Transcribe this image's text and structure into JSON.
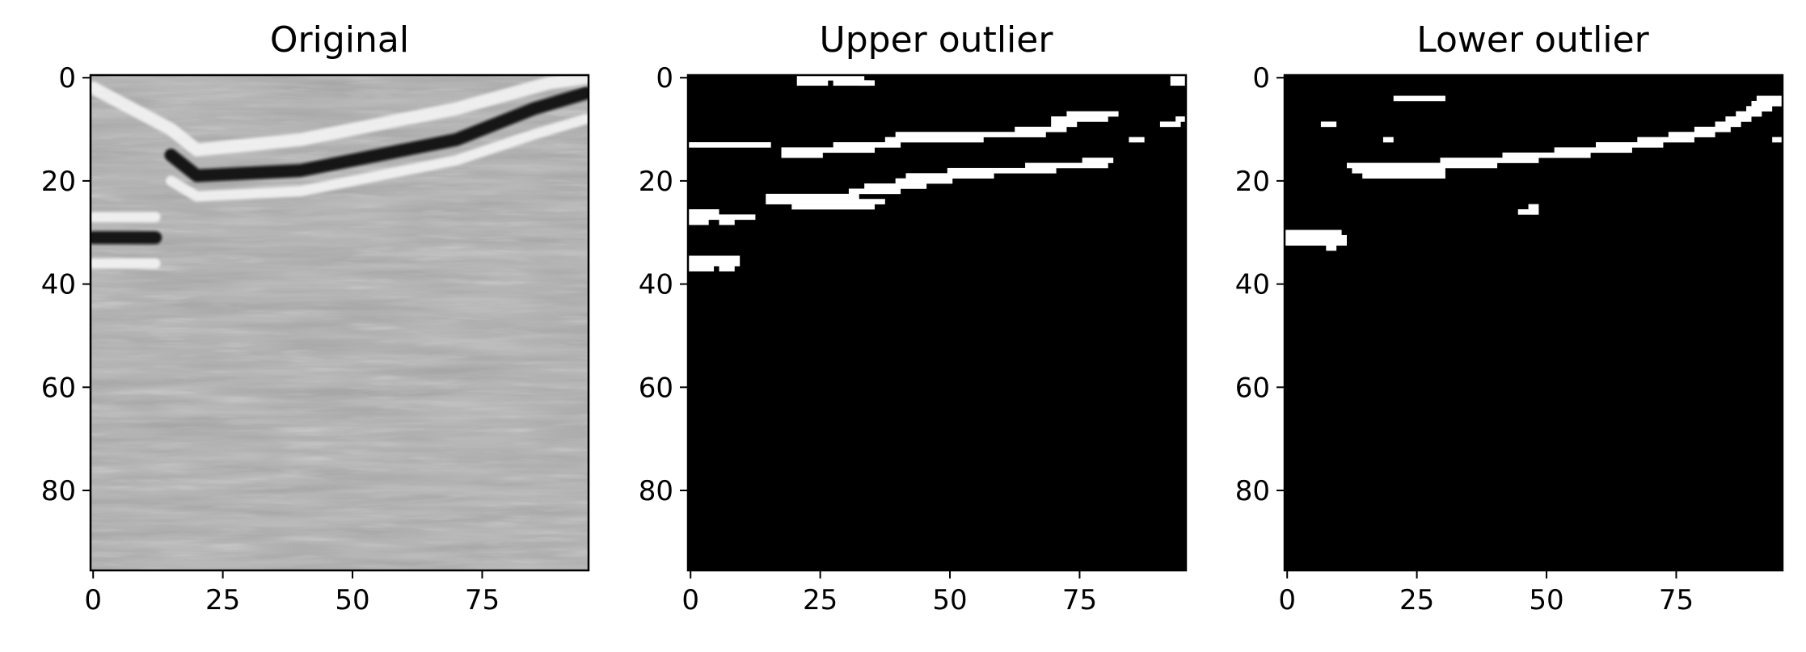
{
  "chart_data": [
    {
      "type": "heatmap",
      "title": "Original",
      "colormap": "grayscale seismic amplitude",
      "xlim": [
        0,
        95
      ],
      "ylim": [
        95,
        0
      ],
      "xticks": [
        0,
        25,
        50,
        75
      ],
      "yticks": [
        0,
        20,
        40,
        60,
        80
      ],
      "features": [
        {
          "kind": "bright reflector",
          "points": [
            [
              0,
              2
            ],
            [
              15,
              10
            ],
            [
              20,
              14
            ],
            [
              40,
              12
            ],
            [
              55,
              9
            ],
            [
              70,
              6
            ],
            [
              88,
              1
            ],
            [
              95,
              0
            ]
          ],
          "thickness": 2.5
        },
        {
          "kind": "dark reflector",
          "points": [
            [
              15,
              15
            ],
            [
              20,
              19
            ],
            [
              40,
              18
            ],
            [
              55,
              15
            ],
            [
              70,
              12
            ],
            [
              85,
              6
            ],
            [
              95,
              3
            ]
          ],
          "thickness": 2.5
        },
        {
          "kind": "bright reflector",
          "points": [
            [
              15,
              20
            ],
            [
              20,
              23
            ],
            [
              40,
              22
            ],
            [
              55,
              19
            ],
            [
              70,
              16
            ],
            [
              85,
              11
            ],
            [
              95,
              8
            ]
          ],
          "thickness": 2
        },
        {
          "kind": "bright reflector",
          "points": [
            [
              0,
              27
            ],
            [
              12,
              27
            ]
          ],
          "thickness": 2
        },
        {
          "kind": "dark reflector",
          "points": [
            [
              0,
              31
            ],
            [
              12,
              31
            ]
          ],
          "thickness": 2.5
        },
        {
          "kind": "bright reflector",
          "points": [
            [
              0,
              36
            ],
            [
              12,
              36
            ]
          ],
          "thickness": 2
        }
      ]
    },
    {
      "type": "heatmap",
      "title": "Upper outlier",
      "colormap": "binary (black = 0, white = 1)",
      "xlim": [
        0,
        95
      ],
      "ylim": [
        95,
        0
      ],
      "xticks": [
        0,
        25,
        50,
        75
      ],
      "yticks": [
        0,
        20,
        40,
        60,
        80
      ],
      "white_runs": [
        [
          0,
          21,
          33
        ],
        [
          0,
          93,
          95
        ],
        [
          1,
          21,
          26
        ],
        [
          1,
          28,
          35
        ],
        [
          1,
          33,
          34
        ],
        [
          1,
          93,
          95
        ],
        [
          7,
          73,
          82
        ],
        [
          8,
          70,
          80
        ],
        [
          8,
          94,
          95
        ],
        [
          9,
          70,
          74
        ],
        [
          9,
          91,
          94
        ],
        [
          10,
          63,
          72
        ],
        [
          11,
          40,
          68
        ],
        [
          12,
          38,
          56
        ],
        [
          12,
          85,
          87
        ],
        [
          13,
          0,
          15
        ],
        [
          13,
          28,
          40
        ],
        [
          14,
          18,
          35
        ],
        [
          15,
          18,
          25
        ],
        [
          16,
          76,
          81
        ],
        [
          17,
          65,
          80
        ],
        [
          18,
          50,
          70
        ],
        [
          19,
          42,
          58
        ],
        [
          20,
          40,
          50
        ],
        [
          21,
          34,
          45
        ],
        [
          22,
          31,
          40
        ],
        [
          23,
          15,
          32
        ],
        [
          24,
          15,
          37
        ],
        [
          25,
          20,
          35
        ],
        [
          26,
          0,
          5
        ],
        [
          27,
          0,
          12
        ],
        [
          28,
          0,
          3
        ],
        [
          28,
          6,
          8
        ],
        [
          35,
          0,
          9
        ],
        [
          36,
          0,
          9
        ],
        [
          37,
          0,
          4
        ],
        [
          37,
          6,
          8
        ]
      ]
    },
    {
      "type": "heatmap",
      "title": "Lower outlier",
      "colormap": "binary (black = 0, white = 1)",
      "xlim": [
        0,
        95
      ],
      "ylim": [
        95,
        0
      ],
      "xticks": [
        0,
        25,
        50,
        75
      ],
      "yticks": [
        0,
        20,
        40,
        60,
        80
      ],
      "white_runs": [
        [
          4,
          21,
          30
        ],
        [
          4,
          91,
          95
        ],
        [
          5,
          90,
          95
        ],
        [
          6,
          89,
          93
        ],
        [
          7,
          87,
          91
        ],
        [
          8,
          85,
          89
        ],
        [
          9,
          7,
          9
        ],
        [
          9,
          83,
          87
        ],
        [
          10,
          79,
          85
        ],
        [
          11,
          74,
          82
        ],
        [
          12,
          19,
          20
        ],
        [
          12,
          68,
          78
        ],
        [
          12,
          94,
          95
        ],
        [
          13,
          60,
          72
        ],
        [
          14,
          52,
          66
        ],
        [
          15,
          42,
          58
        ],
        [
          16,
          30,
          48
        ],
        [
          17,
          12,
          40
        ],
        [
          18,
          13,
          30
        ],
        [
          19,
          15,
          30
        ],
        [
          26,
          45,
          48
        ],
        [
          25,
          47,
          48
        ],
        [
          30,
          0,
          10
        ],
        [
          31,
          0,
          11
        ],
        [
          32,
          0,
          11
        ],
        [
          33,
          8,
          9
        ]
      ]
    }
  ]
}
